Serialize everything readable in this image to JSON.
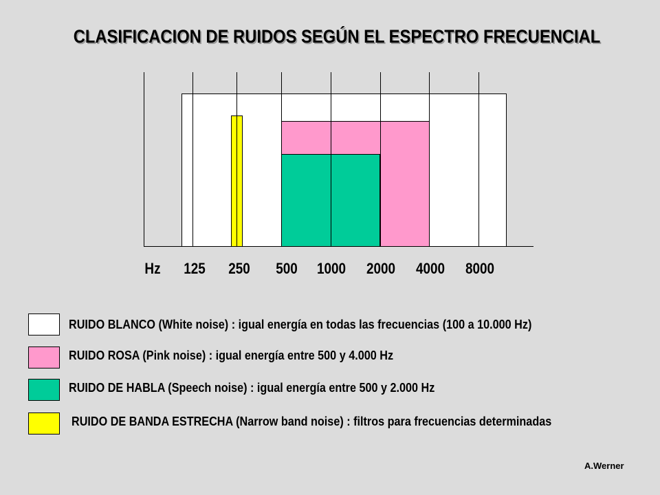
{
  "title": "CLASIFICACION DE RUIDOS SEGÚN EL ESPECTRO FRECUENCIAL",
  "axis": {
    "unit_label": "Hz",
    "ticks": [
      "125",
      "250",
      "500",
      "1000",
      "2000",
      "4000",
      "8000"
    ]
  },
  "bands": {
    "white": {
      "from_hz": 100,
      "to_hz": 10000,
      "relative_level": 1.0
    },
    "pink": {
      "from_hz": 500,
      "to_hz": 4000,
      "relative_level": 0.74
    },
    "speech": {
      "from_hz": 500,
      "to_hz": 2000,
      "relative_level": 0.55
    },
    "narrow": {
      "center_hz": 250,
      "relative_level": 0.85
    }
  },
  "legend": [
    {
      "color": "#ffffff",
      "text": "RUIDO BLANCO (White noise) : igual energía en todas las frecuencias (100 a 10.000 Hz)"
    },
    {
      "color": "#ff99cc",
      "text": "RUIDO ROSA (Pink noise) : igual energía entre 500 y 4.000 Hz"
    },
    {
      "color": "#00cc99",
      "text": "RUIDO DE HABLA (Speech noise) : igual energía entre 500 y 2.000 Hz"
    },
    {
      "color": "#ffff00",
      "text": "RUIDO DE BANDA ESTRECHA (Narrow band noise) : filtros para frecuencias determinadas"
    }
  ],
  "credit": "A.Werner"
}
